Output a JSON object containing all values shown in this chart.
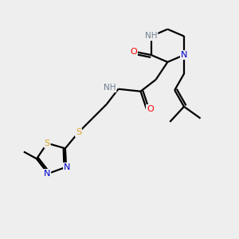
{
  "bg_color": "#eeeeee",
  "atom_colors": {
    "C": "#000000",
    "H": "#708090",
    "N": "#0000CD",
    "O": "#FF0000",
    "S": "#DAA520"
  },
  "bond_color": "#000000",
  "bond_width": 1.6,
  "fig_w": 3.0,
  "fig_h": 3.0,
  "dpi": 100,
  "xlim": [
    0,
    10
  ],
  "ylim": [
    0,
    10
  ]
}
